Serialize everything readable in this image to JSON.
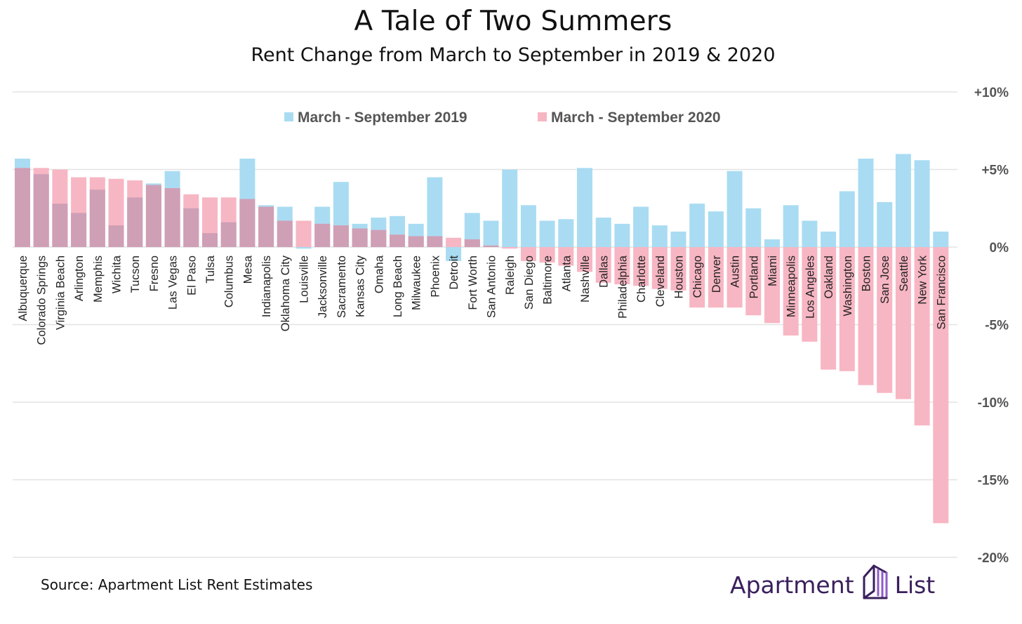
{
  "colors": {
    "series_2019": "#a9dcf2",
    "series_2020": "#f7b6c3",
    "overlap": "#cf9fb6",
    "grid": "#e3e3e3",
    "text": "#222222",
    "brand": "#3a1f5c",
    "brand_accent": "#8e5cc8"
  },
  "footer": {
    "source": "Source: Apartment List Rent Estimates",
    "brand_left": "Apartment",
    "brand_right": "List"
  },
  "chart_data": {
    "type": "bar",
    "title": "A Tale of Two Summers",
    "subtitle": "Rent Change from March to September in 2019 & 2020",
    "xlabel": "",
    "ylabel": "",
    "ylim": [
      -20,
      10
    ],
    "yticks": [
      10,
      5,
      0,
      -5,
      -10,
      -15,
      -20
    ],
    "ytick_labels": [
      "+10%",
      "+5%",
      "0%",
      "-5%",
      "-10%",
      "-15%",
      "-20%"
    ],
    "grid": true,
    "legend_position": "top-center",
    "categories": [
      "Albuquerque",
      "Colorado Springs",
      "Virginia Beach",
      "Arlington",
      "Memphis",
      "Wichita",
      "Tucson",
      "Fresno",
      "Las Vegas",
      "El Paso",
      "Tulsa",
      "Columbus",
      "Mesa",
      "Indianapolis",
      "Oklahoma City",
      "Louisville",
      "Jacksonville",
      "Sacramento",
      "Kansas City",
      "Omaha",
      "Long Beach",
      "Milwaukee",
      "Phoenix",
      "Detroit",
      "Fort Worth",
      "San Antonio",
      "Raleigh",
      "San Diego",
      "Baltimore",
      "Atlanta",
      "Nashville",
      "Dallas",
      "Philadelphia",
      "Charlotte",
      "Cleveland",
      "Houston",
      "Chicago",
      "Denver",
      "Austin",
      "Portland",
      "Miami",
      "Minneapolis",
      "Los Angeles",
      "Oakland",
      "Washington",
      "Boston",
      "San Jose",
      "Seattle",
      "New York",
      "San Francisco"
    ],
    "series": [
      {
        "name": "March - September 2019",
        "values": [
          5.7,
          4.7,
          2.8,
          2.2,
          3.7,
          1.4,
          3.2,
          4.1,
          4.9,
          2.5,
          0.9,
          1.6,
          5.7,
          2.7,
          2.6,
          -0.1,
          2.6,
          4.2,
          1.5,
          1.9,
          2.0,
          1.5,
          4.5,
          -0.9,
          2.2,
          1.7,
          5.0,
          2.7,
          1.7,
          1.8,
          5.1,
          1.9,
          1.5,
          2.6,
          1.4,
          1.0,
          2.8,
          2.3,
          4.9,
          2.5,
          0.5,
          2.7,
          1.7,
          1.0,
          3.6,
          5.7,
          2.9,
          6.0,
          5.6,
          1.0
        ]
      },
      {
        "name": "March - September 2020",
        "values": [
          5.1,
          5.1,
          5.0,
          4.5,
          4.5,
          4.4,
          4.3,
          4.0,
          3.8,
          3.4,
          3.2,
          3.2,
          3.1,
          2.6,
          1.7,
          1.7,
          1.5,
          1.4,
          1.2,
          1.1,
          0.8,
          0.7,
          0.7,
          0.6,
          0.5,
          0.1,
          -0.1,
          -0.9,
          -1.0,
          -1.2,
          -1.6,
          -2.3,
          -2.4,
          -2.5,
          -2.7,
          -2.8,
          -3.9,
          -3.9,
          -3.9,
          -4.4,
          -4.9,
          -5.7,
          -6.1,
          -7.9,
          -8.0,
          -8.9,
          -9.4,
          -9.8,
          -11.5,
          -17.8
        ]
      }
    ]
  }
}
